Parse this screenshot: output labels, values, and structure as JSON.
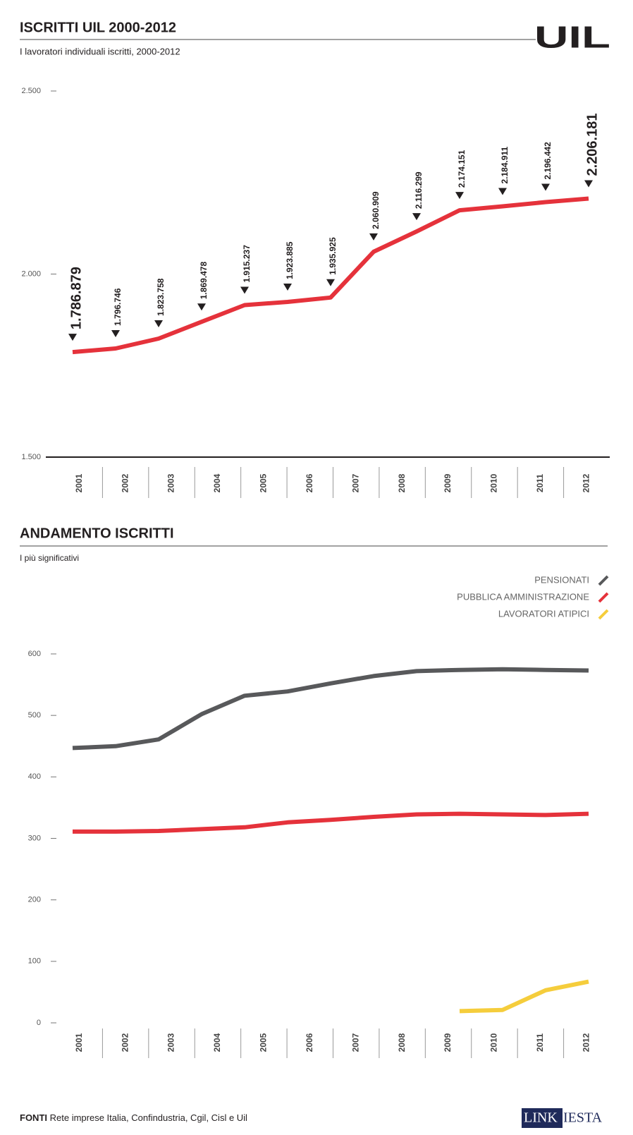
{
  "header": {
    "logo": "UIL"
  },
  "chart_data": [
    {
      "type": "line",
      "title": "ISCRITTI UIL 2000-2012",
      "subtitle": "I lavoratori individuali iscritti, 2000-2012",
      "categories": [
        null,
        "2001",
        "2002",
        "2003",
        "2004",
        "2005",
        "2006",
        "2007",
        "2008",
        "2009",
        "2010",
        "2011",
        "2012"
      ],
      "series": [
        {
          "name": null,
          "color": "#e5323b",
          "values": [
            1786.879,
            1796.746,
            1823.758,
            1869.478,
            1915.237,
            1923.885,
            1935.925,
            2060.909,
            2116.299,
            2174.151,
            2184.911,
            2196.442,
            2206.181
          ],
          "value_labels": [
            "1.786.879",
            "1.796.746",
            "1.823.758",
            "1.869.478",
            "1.915.237",
            "1.923.885",
            "1.935.925",
            "2.060.909",
            "2.116.299",
            "2.174.151",
            "2.184.911",
            "2.196.442",
            "2.206.181"
          ]
        }
      ],
      "ylim": [
        1500,
        2500
      ],
      "yticks": [
        {
          "value": 1500,
          "label": "1.500"
        },
        {
          "value": 2000,
          "label": "2.000"
        },
        {
          "value": 2500,
          "label": "2.500"
        }
      ]
    },
    {
      "type": "line",
      "title": "ANDAMENTO ISCRITTI",
      "subtitle": "I più significativi",
      "categories": [
        null,
        "2001",
        "2002",
        "2003",
        "2004",
        "2005",
        "2006",
        "2007",
        "2008",
        "2009",
        "2010",
        "2011",
        "2012"
      ],
      "series": [
        {
          "name": "PENSIONATI",
          "color": "#58595b",
          "values": [
            447,
            450,
            461,
            502,
            532,
            539,
            552,
            564,
            572,
            574,
            575,
            574,
            573
          ]
        },
        {
          "name": "PUBBLICA AMMINISTRAZIONE",
          "color": "#e5323b",
          "values": [
            311,
            311,
            312,
            315,
            318,
            326,
            330,
            335,
            339,
            340,
            339,
            338,
            340
          ]
        },
        {
          "name": "LAVORATORI ATIPICI",
          "color": "#f5cd3c",
          "values": [
            null,
            null,
            null,
            null,
            null,
            null,
            null,
            null,
            null,
            19,
            21,
            53,
            67
          ]
        }
      ],
      "ylim": [
        0,
        600
      ],
      "yticks": [
        0,
        100,
        200,
        300,
        400,
        500,
        600
      ],
      "legend": "top-right"
    }
  ],
  "footer": {
    "source_label": "FONTI",
    "source": "Rete imprese Italia, Confindustria, Cgil, Cisl e Uil",
    "brand_a": "LINK",
    "brand_b": "IESTA"
  }
}
